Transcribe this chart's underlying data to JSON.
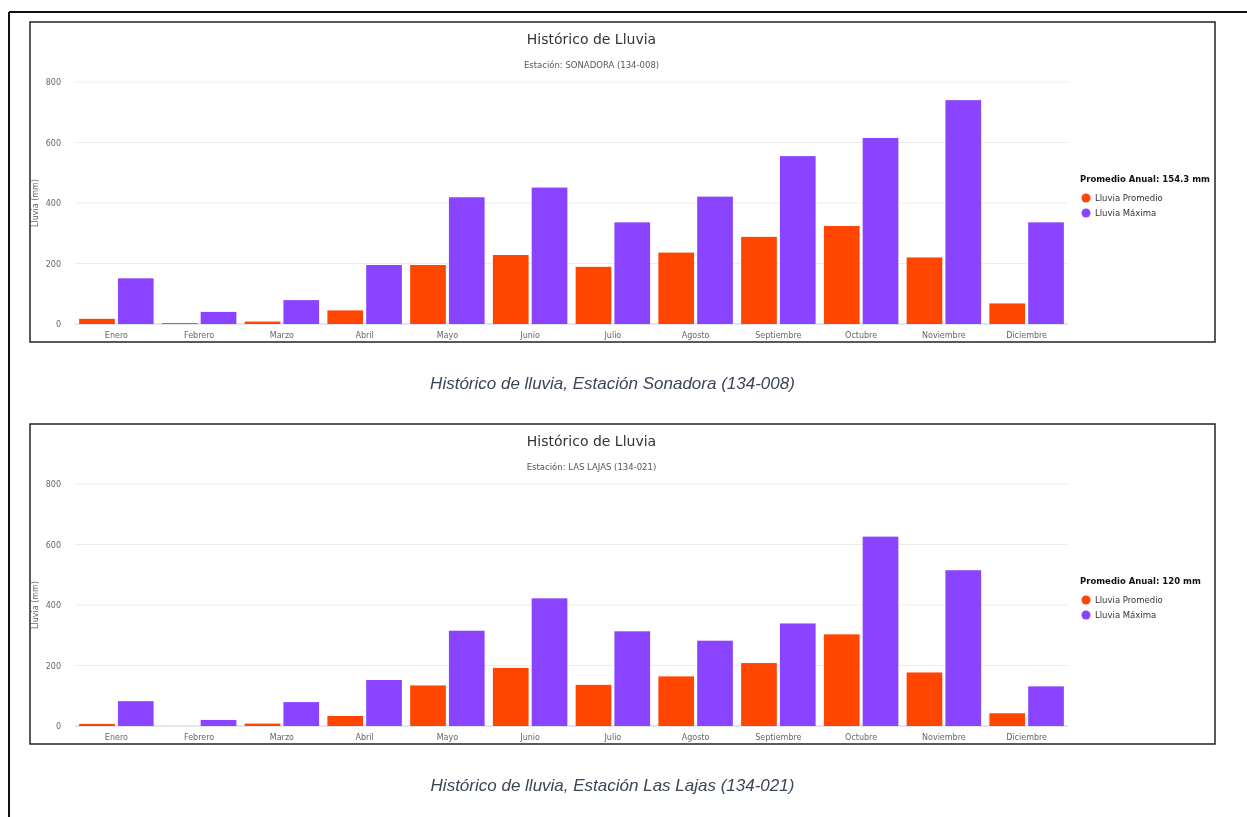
{
  "chart_data": [
    {
      "type": "bar",
      "title": "Histórico de Lluvia",
      "subtitle": "Estación: SONADORA (134-008)",
      "ylabel": "Lluvia (mm)",
      "legend_title": "Promedio Anual: 154.3 mm",
      "categories": [
        "Enero",
        "Febrero",
        "Marzo",
        "Abril",
        "Mayo",
        "Junio",
        "Julio",
        "Agosto",
        "Septiembre",
        "Octubre",
        "Noviembre",
        "Diciembre"
      ],
      "series": [
        {
          "name": "Lluvia Promedio",
          "color": "#ff4500",
          "values": [
            17,
            3,
            8,
            45,
            195,
            228,
            189,
            236,
            288,
            324,
            220,
            68
          ]
        },
        {
          "name": "Lluvia Máxima",
          "color": "#8a44ff",
          "values": [
            151,
            40,
            79,
            195,
            419,
            451,
            336,
            421,
            555,
            615,
            740,
            336
          ]
        }
      ],
      "ylim": [
        0,
        800
      ],
      "yticks": [
        0,
        200,
        400,
        600,
        800
      ],
      "grid": "y",
      "legend": "right",
      "annotations": [
        "Histórico de lluvia, Estación Sonadora (134-008)"
      ]
    },
    {
      "type": "bar",
      "title": "Histórico de Lluvia",
      "subtitle": "Estación: LAS LAJAS (134-021)",
      "ylabel": "Lluvia (mm)",
      "legend_title": "Promedio Anual: 120 mm",
      "categories": [
        "Enero",
        "Febrero",
        "Marzo",
        "Abril",
        "Mayo",
        "Junio",
        "Julio",
        "Agosto",
        "Septiembre",
        "Octubre",
        "Noviembre",
        "Diciembre"
      ],
      "series": [
        {
          "name": "Lluvia Promedio",
          "color": "#ff4500",
          "values": [
            7,
            0,
            8,
            33,
            134,
            192,
            136,
            164,
            208,
            303,
            177,
            42
          ]
        },
        {
          "name": "Lluvia Máxima",
          "color": "#8a44ff",
          "values": [
            82,
            20,
            79,
            152,
            315,
            422,
            313,
            282,
            339,
            626,
            515,
            131
          ]
        }
      ],
      "ylim": [
        0,
        800
      ],
      "yticks": [
        0,
        200,
        400,
        600,
        800
      ],
      "grid": "y",
      "legend": "right",
      "annotations": [
        "Histórico de lluvia, Estación Las Lajas (134-021)"
      ]
    }
  ]
}
